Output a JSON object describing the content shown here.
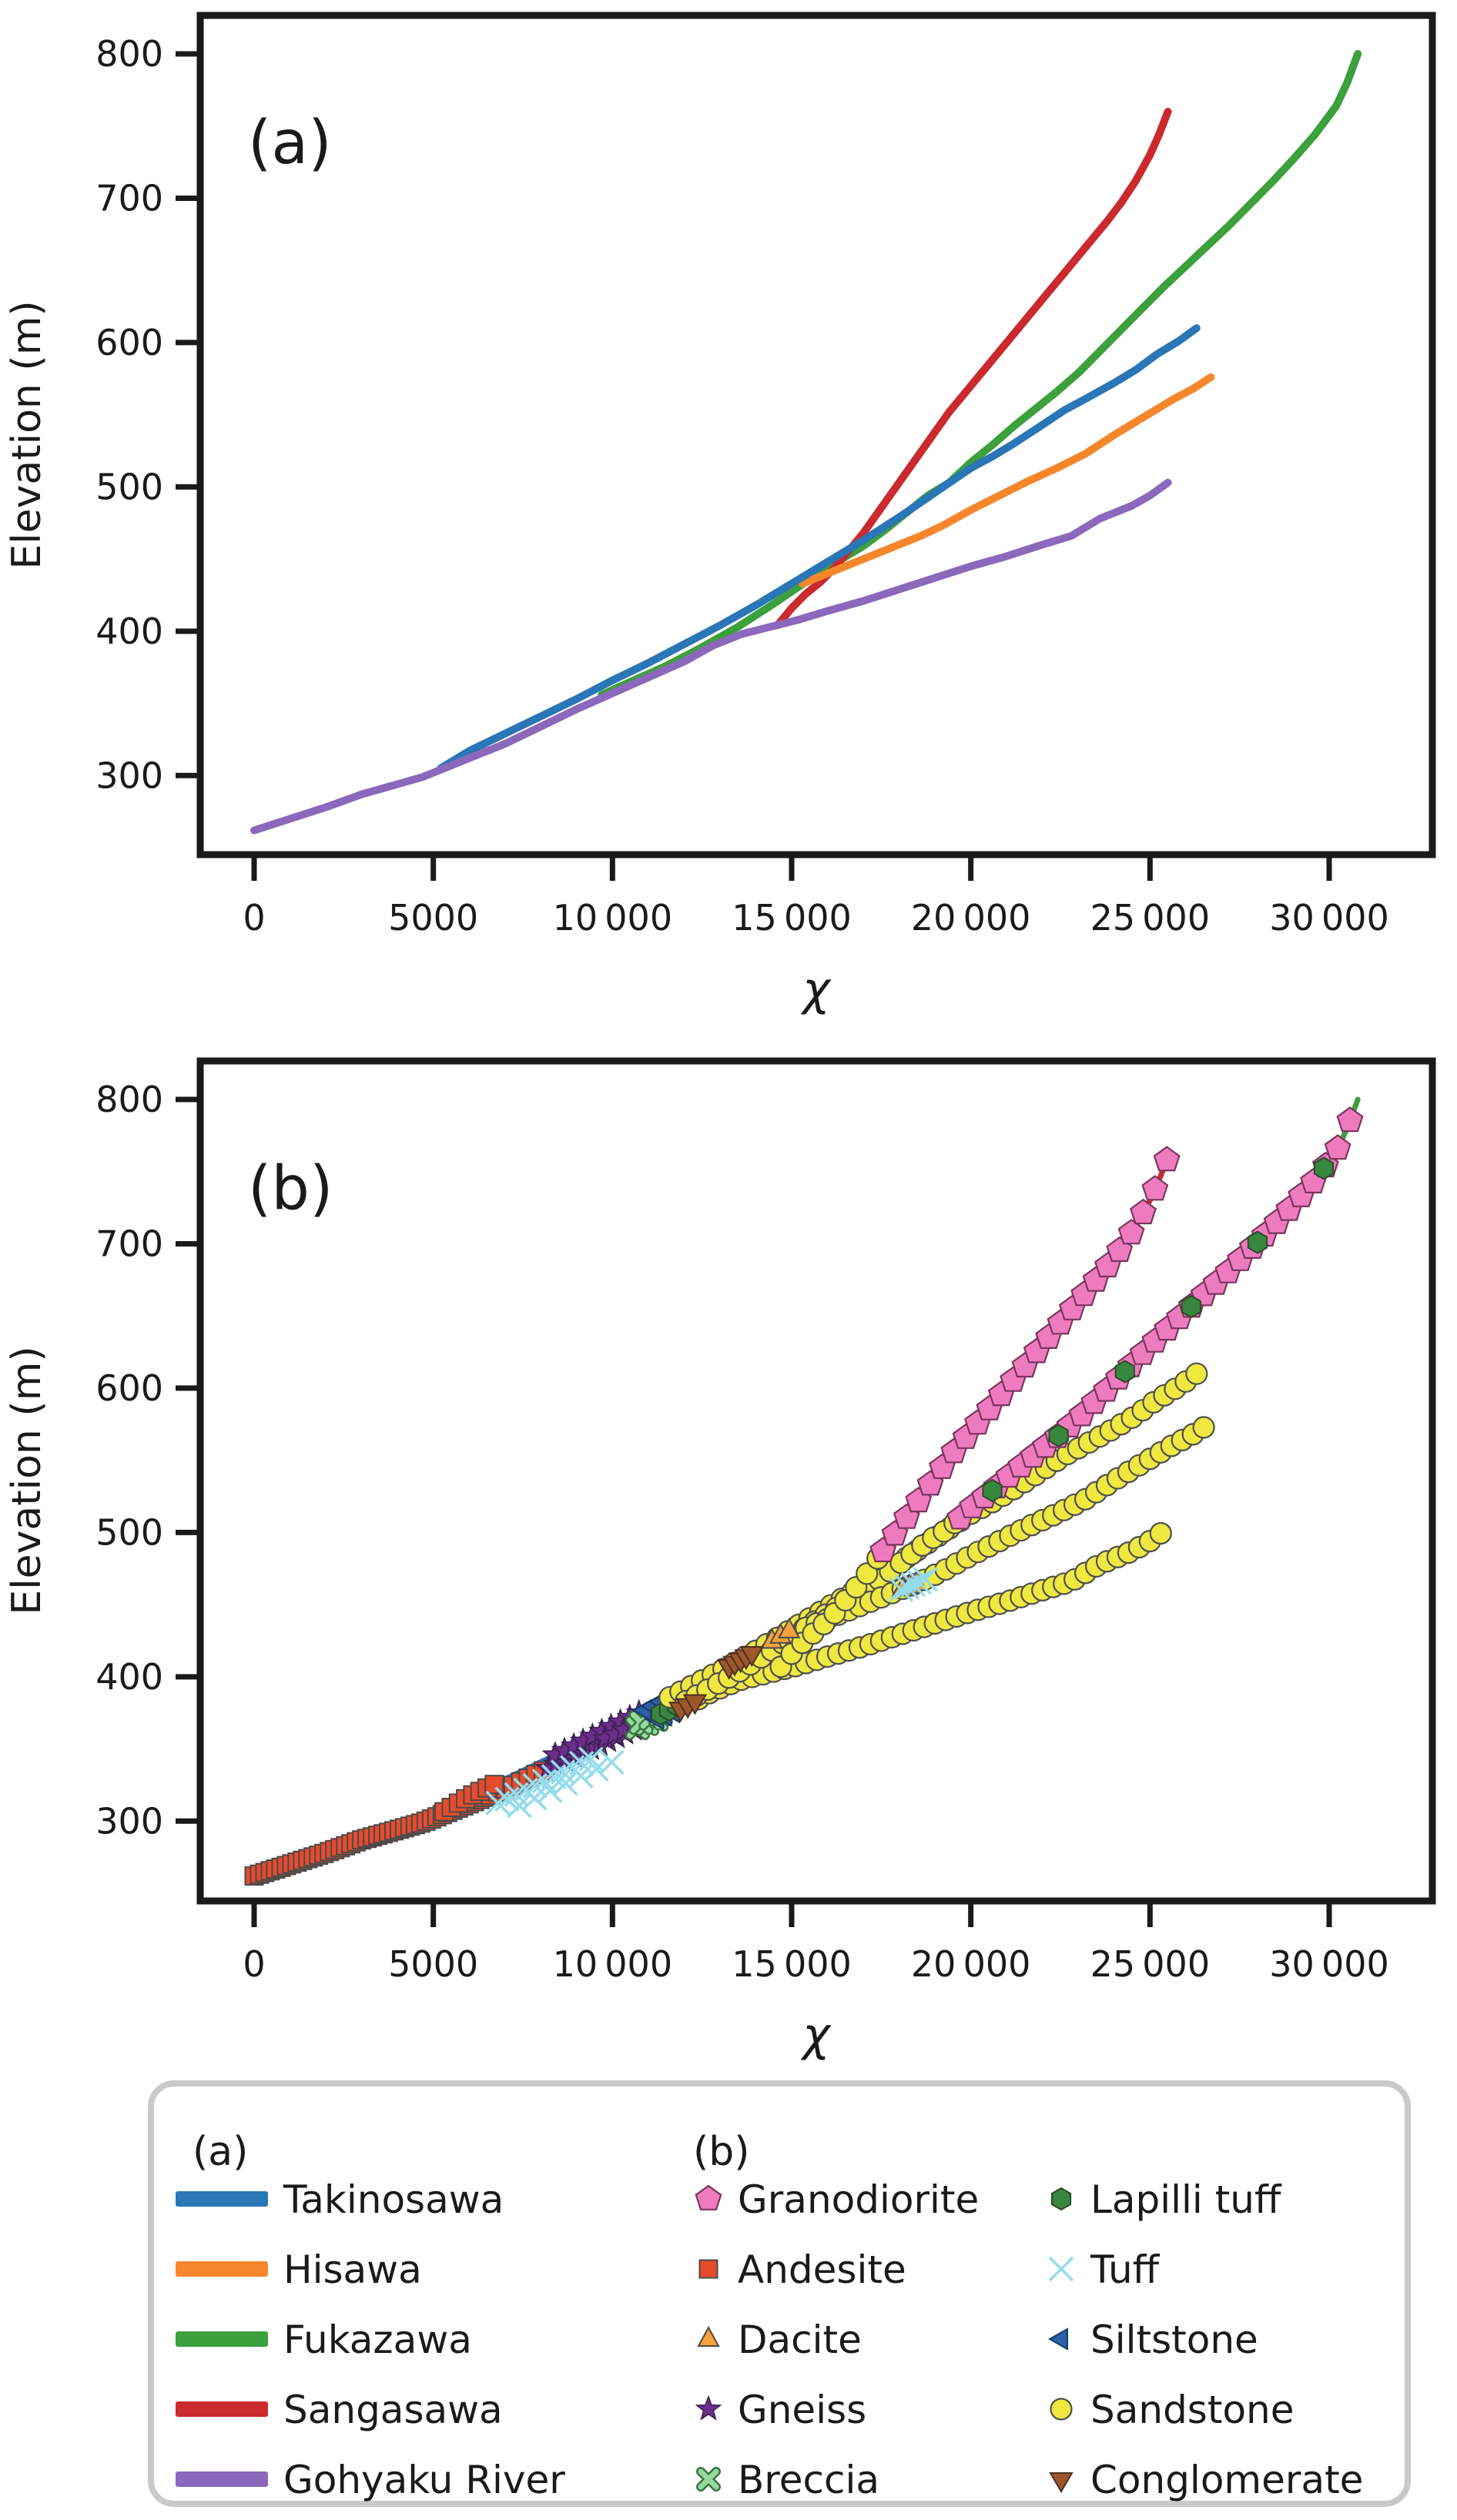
{
  "figure": {
    "background": "#ffffff",
    "panel_a_letter": "(a)",
    "panel_b_letter": "(b)",
    "ylabel": "Elevation (m)",
    "xlabel": "χ"
  },
  "axes": {
    "xlim": [
      -1500,
      32900
    ],
    "ylim": [
      245,
      827
    ],
    "xticks": [
      0,
      5000,
      10000,
      15000,
      20000,
      25000,
      30000
    ],
    "xtick_labels": [
      "0",
      "5000",
      "10 000",
      "15 000",
      "20 000",
      "25 000",
      "30 000"
    ],
    "yticks": [
      300,
      400,
      500,
      600,
      700,
      800
    ],
    "ytick_labels": [
      "300",
      "400",
      "500",
      "600",
      "700",
      "800"
    ],
    "grid": false
  },
  "chart_data": {
    "type": [
      "line",
      "scatter"
    ],
    "panel_a": {
      "kind": "line",
      "draw_order": [
        "fukazawa",
        "sangasawa",
        "hisawa",
        "takinosawa",
        "gohyaku"
      ],
      "line_width": 10
    },
    "panel_b": {
      "kind": "scatter-on-line",
      "underline_width": 7,
      "note": "same river profiles as panel a, markers colored by lithology"
    },
    "rivers": [
      {
        "id": "takinosawa",
        "name": "Takinosawa",
        "color": "#2a76b6",
        "points": [
          [
            5200,
            305
          ],
          [
            6000,
            317
          ],
          [
            7000,
            329
          ],
          [
            8000,
            341
          ],
          [
            9000,
            353
          ],
          [
            10000,
            366
          ],
          [
            11000,
            378
          ],
          [
            12000,
            391
          ],
          [
            13000,
            404
          ],
          [
            14000,
            418
          ],
          [
            15000,
            433
          ],
          [
            16000,
            448
          ],
          [
            17000,
            463
          ],
          [
            18000,
            479
          ],
          [
            19000,
            496
          ],
          [
            20000,
            513
          ],
          [
            20600,
            521
          ],
          [
            21200,
            530
          ],
          [
            22000,
            543
          ],
          [
            22600,
            553
          ],
          [
            23200,
            561
          ],
          [
            24000,
            572
          ],
          [
            24600,
            581
          ],
          [
            25200,
            592
          ],
          [
            25800,
            601
          ],
          [
            26300,
            610
          ]
        ]
      },
      {
        "id": "hisawa",
        "name": "Hisawa",
        "color": "#f6862c",
        "points": [
          [
            15300,
            433
          ],
          [
            16000,
            440
          ],
          [
            17000,
            450
          ],
          [
            18000,
            460
          ],
          [
            18600,
            466
          ],
          [
            19200,
            473
          ],
          [
            20000,
            484
          ],
          [
            20800,
            494
          ],
          [
            21600,
            504
          ],
          [
            22400,
            513
          ],
          [
            23200,
            523
          ],
          [
            24000,
            536
          ],
          [
            24800,
            548
          ],
          [
            25600,
            560
          ],
          [
            26200,
            568
          ],
          [
            26700,
            576
          ]
        ]
      },
      {
        "id": "fukazawa",
        "name": "Fukazawa",
        "color": "#3ca03c",
        "points": [
          [
            9700,
            356
          ],
          [
            10500,
            365
          ],
          [
            11500,
            376
          ],
          [
            12500,
            389
          ],
          [
            13500,
            403
          ],
          [
            14500,
            419
          ],
          [
            15500,
            436
          ],
          [
            16200,
            447
          ],
          [
            17000,
            459
          ],
          [
            17600,
            470
          ],
          [
            18200,
            482
          ],
          [
            18800,
            494
          ],
          [
            19400,
            503
          ],
          [
            20000,
            517
          ],
          [
            20600,
            529
          ],
          [
            21200,
            542
          ],
          [
            21800,
            554
          ],
          [
            22400,
            566
          ],
          [
            23000,
            579
          ],
          [
            23600,
            594
          ],
          [
            24200,
            609
          ],
          [
            24800,
            624
          ],
          [
            25400,
            639
          ],
          [
            26000,
            653
          ],
          [
            26600,
            667
          ],
          [
            27200,
            681
          ],
          [
            27800,
            696
          ],
          [
            28400,
            711
          ],
          [
            29000,
            727
          ],
          [
            29600,
            744
          ],
          [
            30200,
            764
          ],
          [
            30500,
            780
          ],
          [
            30800,
            800
          ]
        ]
      },
      {
        "id": "sangasawa",
        "name": "Sangasawa",
        "color": "#ca2a2e",
        "points": [
          [
            14600,
            404
          ],
          [
            15000,
            416
          ],
          [
            15400,
            426
          ],
          [
            15800,
            434
          ],
          [
            16200,
            444
          ],
          [
            16600,
            456
          ],
          [
            17000,
            468
          ],
          [
            17400,
            482
          ],
          [
            17800,
            496
          ],
          [
            18200,
            510
          ],
          [
            18600,
            524
          ],
          [
            19000,
            538
          ],
          [
            19400,
            552
          ],
          [
            19800,
            564
          ],
          [
            20200,
            576
          ],
          [
            20600,
            588
          ],
          [
            21000,
            600
          ],
          [
            21400,
            612
          ],
          [
            21800,
            624
          ],
          [
            22200,
            636
          ],
          [
            22600,
            648
          ],
          [
            23000,
            660
          ],
          [
            23400,
            672
          ],
          [
            23800,
            684
          ],
          [
            24200,
            697
          ],
          [
            24600,
            712
          ],
          [
            25000,
            730
          ],
          [
            25250,
            744
          ],
          [
            25500,
            760
          ]
        ]
      },
      {
        "id": "gohyaku",
        "name": "Gohyaku River",
        "color": "#8c68bc",
        "points": [
          [
            0,
            262
          ],
          [
            1000,
            270
          ],
          [
            2000,
            278
          ],
          [
            3000,
            287
          ],
          [
            4000,
            294
          ],
          [
            4700,
            299
          ],
          [
            5000,
            302
          ],
          [
            6000,
            312
          ],
          [
            7000,
            322
          ],
          [
            8000,
            334
          ],
          [
            9000,
            346
          ],
          [
            10000,
            357
          ],
          [
            11000,
            368
          ],
          [
            12000,
            379
          ],
          [
            12800,
            390
          ],
          [
            13600,
            398
          ],
          [
            14400,
            403
          ],
          [
            15200,
            408
          ],
          [
            16000,
            414
          ],
          [
            17000,
            421
          ],
          [
            18000,
            429
          ],
          [
            19000,
            437
          ],
          [
            20000,
            445
          ],
          [
            21000,
            452
          ],
          [
            22000,
            460
          ],
          [
            22800,
            466
          ],
          [
            23200,
            472
          ],
          [
            23600,
            478
          ],
          [
            24000,
            482
          ],
          [
            24500,
            487
          ],
          [
            25000,
            494
          ],
          [
            25500,
            503
          ]
        ]
      }
    ],
    "lithologies": {
      "granodiorite": {
        "label": "Granodiorite",
        "shape": "pentagon",
        "fill": "#ef7bbf",
        "edge": "#79365f"
      },
      "andesite": {
        "label": "Andesite",
        "shape": "square",
        "fill": "#e84b2c",
        "edge": "#4a4a4a"
      },
      "dacite": {
        "label": "Dacite",
        "shape": "triangle-up",
        "fill": "#f6a13a",
        "edge": "#4a4a4a"
      },
      "gneiss": {
        "label": "Gneiss",
        "shape": "star",
        "fill": "#6b2e8c",
        "edge": "#3c1f4e"
      },
      "breccia": {
        "label": "Breccia",
        "shape": "thick-x",
        "fill": "#96d8a0",
        "edge": "#37763c"
      },
      "lapilli_tuff": {
        "label": "Lapilli tuff",
        "shape": "hexagon",
        "fill": "#38873e",
        "edge": "#2c4a2e"
      },
      "tuff": {
        "label": "Tuff",
        "shape": "thin-x",
        "fill": "#93dcec",
        "edge": "#93dcec"
      },
      "siltstone": {
        "label": "Siltstone",
        "shape": "triangle-left",
        "fill": "#2b5fa8",
        "edge": "#173d66"
      },
      "sandstone": {
        "label": "Sandstone",
        "shape": "circle",
        "fill": "#efe83f",
        "edge": "#4f4f4f"
      },
      "conglomerate": {
        "label": "Conglomerate",
        "shape": "triangle-down",
        "fill": "#9e562c",
        "edge": "#4a3120"
      }
    },
    "lithology_segments": [
      {
        "river": "gohyaku",
        "lith": "andesite",
        "from": 0,
        "to": 6600,
        "step": 150
      },
      {
        "river": "gohyaku",
        "lith": "andesite",
        "from": 6600,
        "to": 8200,
        "step": 210
      },
      {
        "river": "takinosawa",
        "lith": "andesite",
        "from": 5300,
        "to": 6700,
        "step": 200
      },
      {
        "river": "gohyaku",
        "lith": "gneiss",
        "from": 8200,
        "to": 10700,
        "step": 240
      },
      {
        "river": "takinosawa",
        "lith": "gneiss",
        "from": 8400,
        "to": 10900,
        "step": 260
      },
      {
        "river": "fukazawa",
        "lith": "gneiss",
        "from": 9800,
        "to": 10800,
        "step": 260
      },
      {
        "river": "gohyaku",
        "lith": "breccia",
        "from": 10700,
        "to": 11250,
        "step": 260
      },
      {
        "river": "fukazawa",
        "lith": "breccia",
        "from": 10800,
        "to": 11350,
        "step": 270
      },
      {
        "river": "gohyaku",
        "lith": "siltstone",
        "from": 11250,
        "to": 11850,
        "step": 220
      },
      {
        "river": "takinosawa",
        "lith": "siltstone",
        "from": 10900,
        "to": 11600,
        "step": 230
      },
      {
        "river": "fukazawa",
        "lith": "lapilli_tuff",
        "from": 11350,
        "to": 12000,
        "step": 230
      },
      {
        "river": "gohyaku",
        "lith": "sandstone",
        "from": 12400,
        "to": 25500,
        "step": 300
      },
      {
        "river": "takinosawa",
        "lith": "sandstone",
        "from": 11600,
        "to": 26300,
        "step": 300
      },
      {
        "river": "fukazawa",
        "lith": "sandstone",
        "from": 12050,
        "to": 19600,
        "step": 300
      },
      {
        "river": "hisawa",
        "lith": "sandstone",
        "from": 15400,
        "to": 26700,
        "step": 300
      },
      {
        "river": "sangasawa",
        "lith": "sandstone",
        "from": 14700,
        "to": 17500,
        "step": 300
      },
      {
        "river": "gohyaku",
        "lith": "conglomerate",
        "from": 11900,
        "to": 12350,
        "step": 200
      },
      {
        "river": "takinosawa",
        "lith": "dacite",
        "from": 14450,
        "to": 14950,
        "step": 240
      },
      {
        "river": "takinosawa",
        "lith": "conglomerate",
        "from": 13250,
        "to": 13900,
        "step": 160
      },
      {
        "river": "hisawa",
        "lith": "dacite",
        "from": 18100,
        "to": 18500,
        "step": 190
      },
      {
        "river": "hisawa",
        "lith": "tuff",
        "from": 18050,
        "to": 18750,
        "step": 170
      },
      {
        "river": "gohyaku",
        "lith": "tuff",
        "from": 6800,
        "to": 9600,
        "step": 260,
        "dy": 14
      },
      {
        "river": "gohyaku",
        "lith": "tuff",
        "from": 7400,
        "to": 10400,
        "step": 430,
        "dy": 30
      },
      {
        "river": "sangasawa",
        "lith": "granodiorite",
        "from": 17550,
        "to": 25500,
        "step": 330
      },
      {
        "river": "fukazawa",
        "lith": "granodiorite",
        "from": 19700,
        "to": 30800,
        "step": 340
      },
      {
        "river": "fukazawa",
        "lith": "lapilli_tuff",
        "from": 20600,
        "to": 30200,
        "step": 1850
      }
    ]
  },
  "legend": {
    "header_a": "(a)",
    "header_b": "(b)",
    "column_a": [
      {
        "river": "takinosawa",
        "label": "Takinosawa"
      },
      {
        "river": "hisawa",
        "label": "Hisawa"
      },
      {
        "river": "fukazawa",
        "label": "Fukazawa"
      },
      {
        "river": "sangasawa",
        "label": "Sangasawa"
      },
      {
        "river": "gohyaku",
        "label": "Gohyaku River"
      }
    ],
    "column_b": [
      "granodiorite",
      "andesite",
      "dacite",
      "gneiss",
      "breccia"
    ],
    "column_c": [
      "lapilli_tuff",
      "tuff",
      "siltstone",
      "sandstone",
      "conglomerate"
    ]
  }
}
